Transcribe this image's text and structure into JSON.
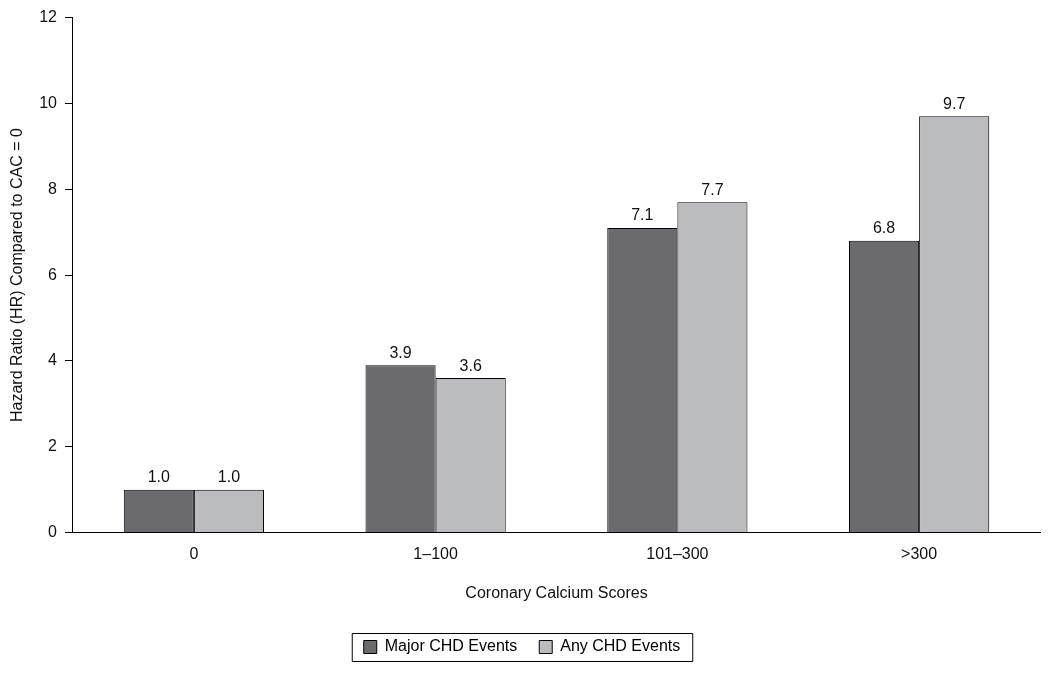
{
  "chart_data": {
    "type": "bar",
    "xlabel": "Coronary Calcium Scores",
    "ylabel": "Hazard Ratio (HR) Compared to CAC = 0",
    "categories": [
      "0",
      "1–100",
      "101–300",
      ">300"
    ],
    "series": [
      {
        "name": "Major CHD Events",
        "color": "#6b6b6f",
        "values": [
          1.0,
          3.9,
          7.1,
          6.8
        ],
        "value_labels": [
          "1.0",
          "3.9",
          "7.1",
          "6.8"
        ]
      },
      {
        "name": "Any CHD Events",
        "color": "#bbbcc0",
        "values": [
          1.0,
          3.6,
          7.7,
          9.7
        ],
        "value_labels": [
          "1.0",
          "3.6",
          "7.7",
          "9.7"
        ]
      }
    ],
    "ylim": [
      0,
      12
    ],
    "yticks": [
      0,
      2,
      4,
      6,
      8,
      10,
      12
    ],
    "grid": false,
    "legend": "bottom"
  }
}
